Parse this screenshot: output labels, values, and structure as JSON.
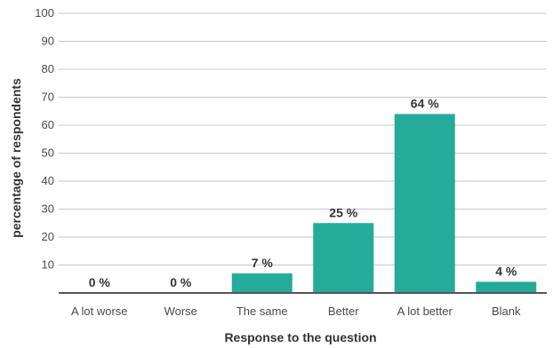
{
  "chart_data": {
    "type": "bar",
    "categories": [
      "A lot worse",
      "Worse",
      "The same",
      "Better",
      "A lot better",
      "Blank"
    ],
    "values": [
      0,
      0,
      7,
      25,
      64,
      4
    ],
    "data_labels": [
      "0 %",
      "0 %",
      "7 %",
      "25 %",
      "64 %",
      "4 %"
    ],
    "yticks": [
      10,
      20,
      30,
      40,
      50,
      60,
      70,
      80,
      90,
      100
    ],
    "ylim": [
      0,
      100
    ],
    "xlabel": "Response to the question",
    "ylabel": "percentage of respondents",
    "grid": true,
    "bar_color": "#25ab99"
  }
}
